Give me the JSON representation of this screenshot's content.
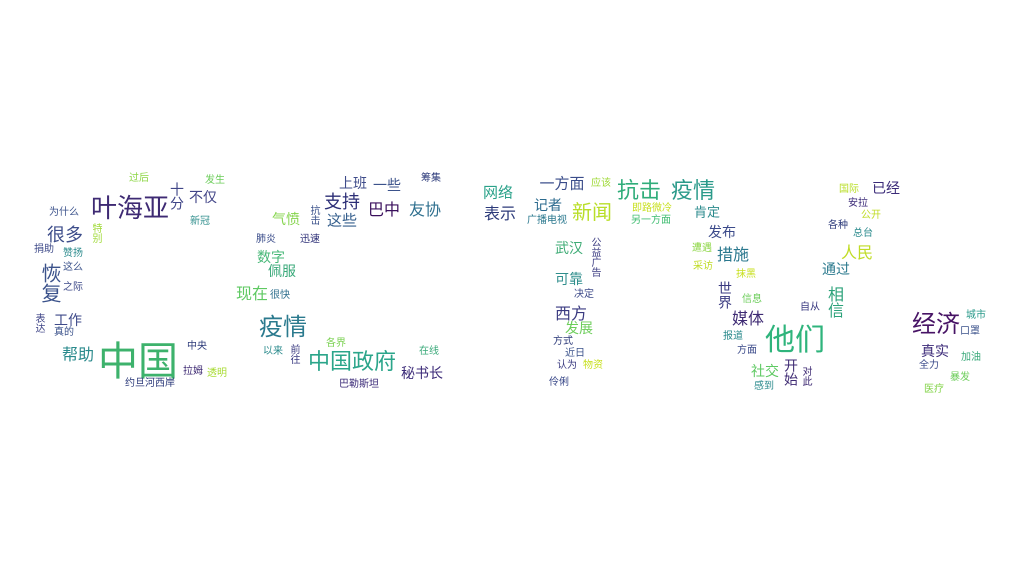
{
  "words": [
    {
      "text": "中国",
      "color": "#3db26c"
    },
    {
      "text": "叶海亚",
      "color": "#3e2a73"
    },
    {
      "text": "疫情",
      "color": "#2b7a8e"
    },
    {
      "text": "中国政府",
      "color": "#2ba58a"
    },
    {
      "text": "他们",
      "color": "#2fb47c"
    },
    {
      "text": "经济",
      "color": "#471365"
    },
    {
      "text": "抗击",
      "color": "#30ad7a"
    },
    {
      "text": "疫情",
      "color": "#2a9a8a"
    },
    {
      "text": "新闻",
      "color": "#b9de28"
    },
    {
      "text": "很多",
      "color": "#3d4d8a"
    },
    {
      "text": "恢复",
      "color": "#3b528b"
    },
    {
      "text": "帮助",
      "color": "#2a8a8c"
    },
    {
      "text": "工作",
      "color": "#3e4a89"
    },
    {
      "text": "十分",
      "color": "#404688"
    },
    {
      "text": "不仅",
      "color": "#414487"
    },
    {
      "text": "支持",
      "color": "#2c2e76"
    },
    {
      "text": "巴中",
      "color": "#3a0f5c"
    },
    {
      "text": "友协",
      "color": "#2e6f8e"
    },
    {
      "text": "这些",
      "color": "#355f8d"
    },
    {
      "text": "上班",
      "color": "#3f4c8a"
    },
    {
      "text": "一些",
      "color": "#3b528b"
    },
    {
      "text": "现在",
      "color": "#5ec962"
    },
    {
      "text": "佩服",
      "color": "#3aa97a"
    },
    {
      "text": "数字",
      "color": "#48b878"
    },
    {
      "text": "气愤",
      "color": "#84d44b"
    },
    {
      "text": "秘书长",
      "color": "#3b2a78"
    },
    {
      "text": "网络",
      "color": "#2ba28a"
    },
    {
      "text": "表示",
      "color": "#2c3a7a"
    },
    {
      "text": "一方面",
      "color": "#3a4c8a"
    },
    {
      "text": "记者",
      "color": "#2b6a8e"
    },
    {
      "text": "西方",
      "color": "#3a3a80"
    },
    {
      "text": "发展",
      "color": "#6ccd5a"
    },
    {
      "text": "武汉",
      "color": "#3cab74"
    },
    {
      "text": "可靠",
      "color": "#2f8e8c"
    },
    {
      "text": "肯定",
      "color": "#2a8a8c"
    },
    {
      "text": "发布",
      "color": "#3b4a8a"
    },
    {
      "text": "措施",
      "color": "#2a788e"
    },
    {
      "text": "媒体",
      "color": "#3e2a73"
    },
    {
      "text": "世界",
      "color": "#3a3a80"
    },
    {
      "text": "相信",
      "color": "#2ca27a"
    },
    {
      "text": "人民",
      "color": "#c0dc26"
    },
    {
      "text": "通过",
      "color": "#2b7a8e"
    },
    {
      "text": "已经",
      "color": "#3a2a78"
    },
    {
      "text": "社交",
      "color": "#5ec962"
    },
    {
      "text": "开始",
      "color": "#3e2a73"
    },
    {
      "text": "真实",
      "color": "#3b2a78"
    },
    {
      "text": "过后",
      "color": "#8cd644"
    },
    {
      "text": "发生",
      "color": "#6ccd5a"
    },
    {
      "text": "为什么",
      "color": "#3b528b"
    },
    {
      "text": "新冠",
      "color": "#2f8e8c"
    },
    {
      "text": "捐助",
      "color": "#3e4a89"
    },
    {
      "text": "赞扬",
      "color": "#2a8a8c"
    },
    {
      "text": "这么",
      "color": "#3b528b"
    },
    {
      "text": "之际",
      "color": "#3e4a89"
    },
    {
      "text": "特别",
      "color": "#a0da39"
    },
    {
      "text": "表达",
      "color": "#404688"
    },
    {
      "text": "真的",
      "color": "#3b528b"
    },
    {
      "text": "中央",
      "color": "#2c3a7a"
    },
    {
      "text": "拉姆",
      "color": "#3e2a73"
    },
    {
      "text": "透明",
      "color": "#a8db34"
    },
    {
      "text": "约旦河西岸",
      "color": "#2c3a7a"
    },
    {
      "text": "肺炎",
      "color": "#3a4c8a"
    },
    {
      "text": "迅速",
      "color": "#2c2e76"
    },
    {
      "text": "很快",
      "color": "#2e6f8e"
    },
    {
      "text": "抗击",
      "color": "#3b528b"
    },
    {
      "text": "以来",
      "color": "#2a8a8c"
    },
    {
      "text": "前往",
      "color": "#3a3a80"
    },
    {
      "text": "各界",
      "color": "#7ad151"
    },
    {
      "text": "在线",
      "color": "#3aa97a"
    },
    {
      "text": "巴勒斯坦",
      "color": "#3b2a78"
    },
    {
      "text": "筹集",
      "color": "#2c3a7a"
    },
    {
      "text": "应该",
      "color": "#a0da39"
    },
    {
      "text": "广播电视",
      "color": "#2a788e"
    },
    {
      "text": "即路微冷",
      "color": "#c8e020"
    },
    {
      "text": "另一方面",
      "color": "#40bd72"
    },
    {
      "text": "公益广告",
      "color": "#3a3a80"
    },
    {
      "text": "决定",
      "color": "#3e4a89"
    },
    {
      "text": "方式",
      "color": "#2c3a7a"
    },
    {
      "text": "近日",
      "color": "#3b528b"
    },
    {
      "text": "认为",
      "color": "#3a3a80"
    },
    {
      "text": "物资",
      "color": "#c8e020"
    },
    {
      "text": "伶俐",
      "color": "#3b4a8a"
    },
    {
      "text": "遭遇",
      "color": "#8cd644"
    },
    {
      "text": "采访",
      "color": "#c0dc26"
    },
    {
      "text": "抹黑",
      "color": "#c8e020"
    },
    {
      "text": "信息",
      "color": "#6ccd5a"
    },
    {
      "text": "报道",
      "color": "#2a8a8c"
    },
    {
      "text": "方面",
      "color": "#3b4a8a"
    },
    {
      "text": "感到",
      "color": "#2a8a8c"
    },
    {
      "text": "对此",
      "color": "#3e2a73"
    },
    {
      "text": "自从",
      "color": "#3a3a80"
    },
    {
      "text": "国际",
      "color": "#b9de28"
    },
    {
      "text": "安拉",
      "color": "#3b2a78"
    },
    {
      "text": "公开",
      "color": "#c0dc26"
    },
    {
      "text": "各种",
      "color": "#2c3a7a"
    },
    {
      "text": "总台",
      "color": "#2a8a8c"
    },
    {
      "text": "城市",
      "color": "#2a9a8a"
    },
    {
      "text": "口罩",
      "color": "#3b528b"
    },
    {
      "text": "加油",
      "color": "#3aa97a"
    },
    {
      "text": "全力",
      "color": "#3b4a8a"
    },
    {
      "text": "暴发",
      "color": "#6ccd5a"
    },
    {
      "text": "医疗",
      "color": "#84d44b"
    }
  ]
}
